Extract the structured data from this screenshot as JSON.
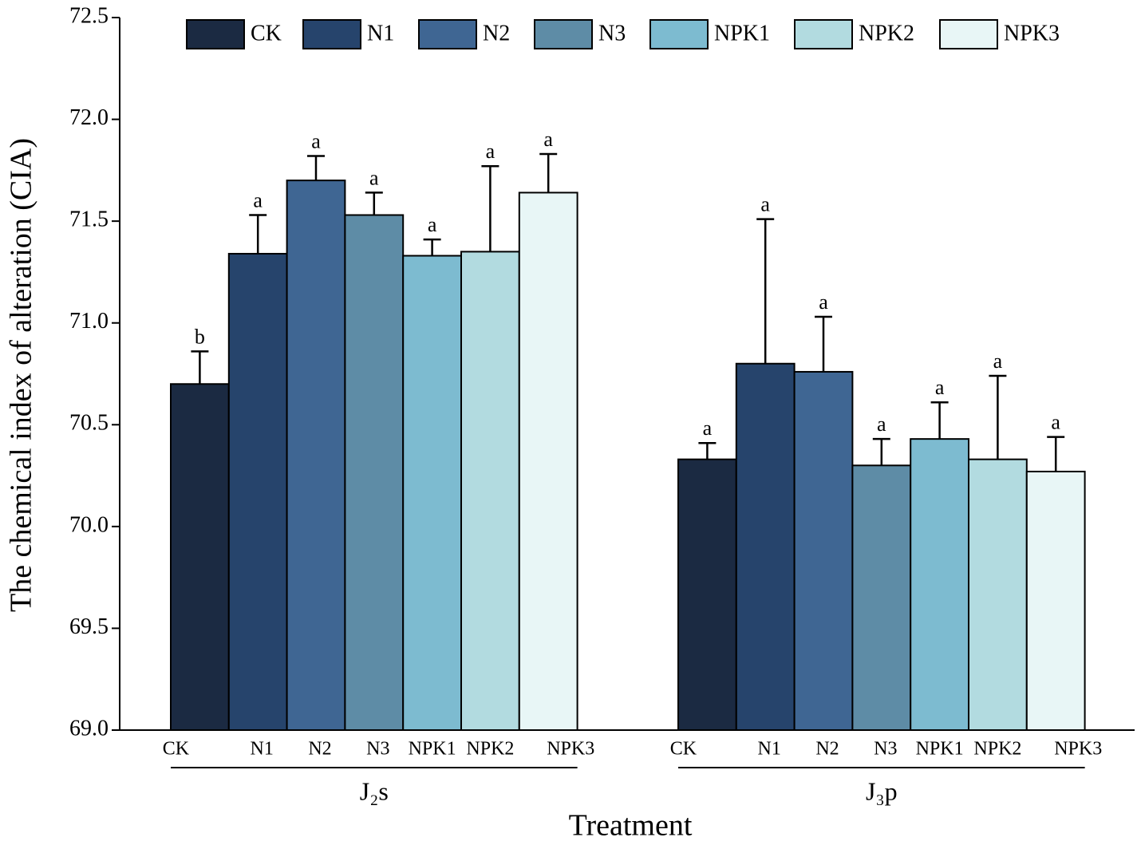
{
  "chart_data": {
    "type": "bar",
    "ylabel": "The chemical index of alteration (CIA)",
    "xlabel": "Treatment",
    "categories": [
      "J₂s",
      "J₃p"
    ],
    "ylim": [
      69.0,
      72.5
    ],
    "yticks": [
      {
        "value": 69.0,
        "label": "69.0"
      },
      69.5,
      {
        "value": 70.0,
        "label": "70.0"
      },
      70.5,
      {
        "value": 71.0,
        "label": "71.0"
      },
      71.5,
      {
        "value": 72.0,
        "label": "72.0"
      },
      72.5
    ],
    "series": [
      {
        "name": "CK",
        "color": "#1b2a42",
        "values": [
          70.7,
          70.33
        ],
        "errors": [
          0.16,
          0.08
        ],
        "letters": [
          "b",
          "a"
        ]
      },
      {
        "name": "N1",
        "color": "#26446c",
        "values": [
          71.34,
          70.8
        ],
        "errors": [
          0.19,
          0.71
        ],
        "letters": [
          "a",
          "a"
        ]
      },
      {
        "name": "N2",
        "color": "#3f6693",
        "values": [
          71.7,
          70.76
        ],
        "errors": [
          0.12,
          0.27
        ],
        "letters": [
          "a",
          "a"
        ]
      },
      {
        "name": "N3",
        "color": "#5e8ca6",
        "values": [
          71.53,
          70.3
        ],
        "errors": [
          0.11,
          0.13
        ],
        "letters": [
          "a",
          "a"
        ]
      },
      {
        "name": "NPK1",
        "color": "#7dbbd0",
        "values": [
          71.33,
          70.43
        ],
        "errors": [
          0.08,
          0.18
        ],
        "letters": [
          "a",
          "a"
        ]
      },
      {
        "name": "NPK2",
        "color": "#b2dbe0",
        "values": [
          71.35,
          70.33
        ],
        "errors": [
          0.42,
          0.41
        ],
        "letters": [
          "a",
          "a"
        ]
      },
      {
        "name": "NPK3",
        "color": "#e8f6f6",
        "values": [
          71.64,
          70.27
        ],
        "errors": [
          0.19,
          0.17
        ],
        "letters": [
          "a",
          "a"
        ]
      }
    ]
  }
}
